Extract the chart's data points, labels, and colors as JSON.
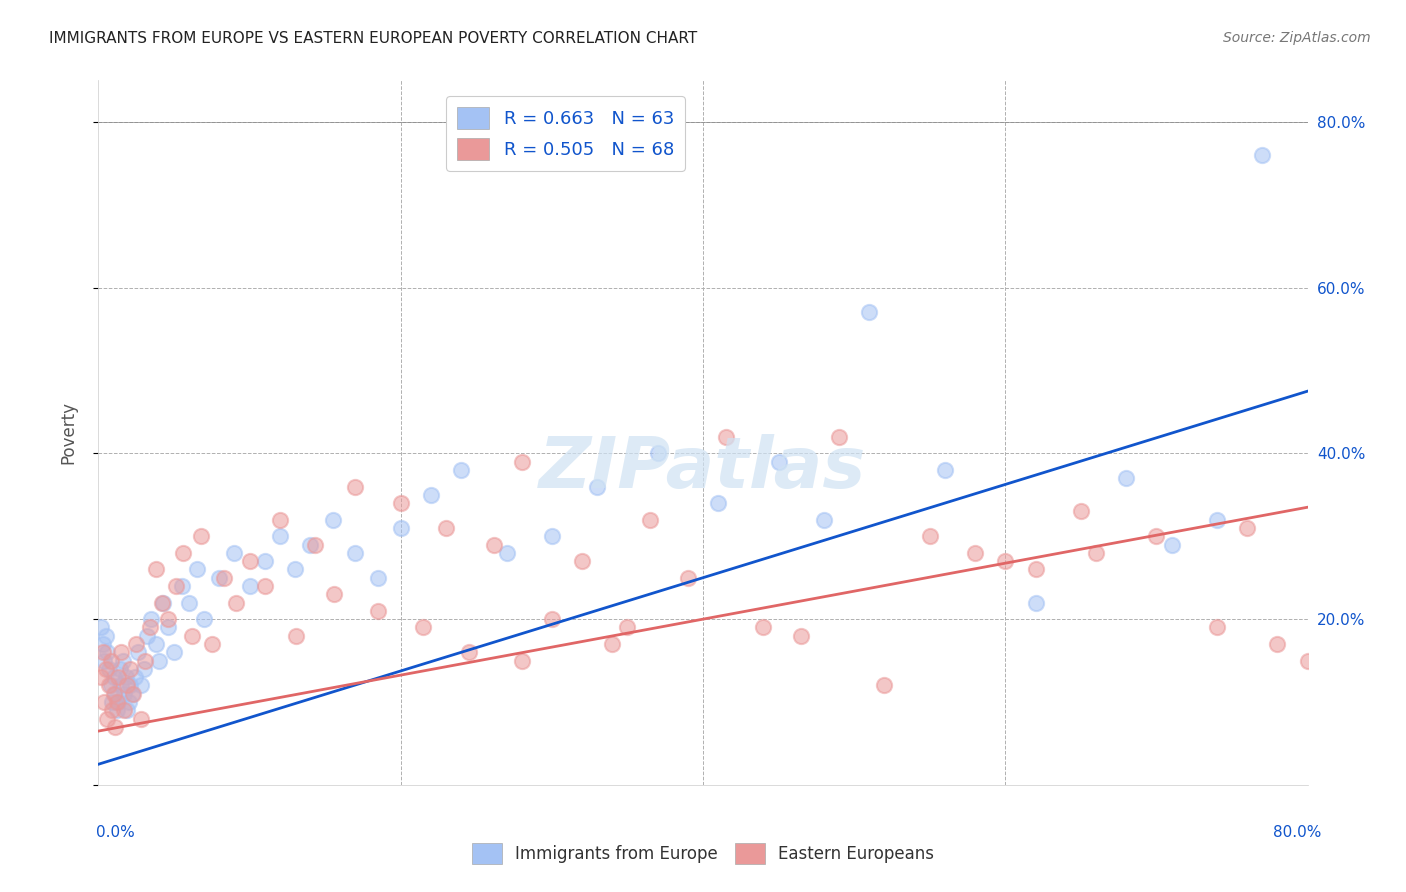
{
  "title": "IMMIGRANTS FROM EUROPE VS EASTERN EUROPEAN POVERTY CORRELATION CHART",
  "source": "Source: ZipAtlas.com",
  "ylabel": "Poverty",
  "xlim": [
    0,
    0.8
  ],
  "ylim": [
    0,
    0.85
  ],
  "blue_R": 0.663,
  "blue_N": 63,
  "pink_R": 0.505,
  "pink_N": 68,
  "blue_color": "#a4c2f4",
  "pink_color": "#ea9999",
  "blue_line_color": "#1155cc",
  "pink_line_color": "#e06666",
  "legend_R_color": "#1155cc",
  "background_color": "#ffffff",
  "grid_color": "#b0b0b0",
  "title_color": "#000000",
  "axis_label_color": "#1155cc",
  "blue_line_start_y": 0.025,
  "blue_line_end_y": 0.475,
  "pink_line_start_y": 0.065,
  "pink_line_end_y": 0.335,
  "blue_scatter_x": [
    0.002,
    0.003,
    0.004,
    0.005,
    0.006,
    0.007,
    0.008,
    0.009,
    0.01,
    0.011,
    0.012,
    0.013,
    0.014,
    0.015,
    0.016,
    0.017,
    0.018,
    0.019,
    0.02,
    0.021,
    0.022,
    0.024,
    0.026,
    0.028,
    0.03,
    0.032,
    0.035,
    0.038,
    0.04,
    0.043,
    0.046,
    0.05,
    0.055,
    0.06,
    0.065,
    0.07,
    0.08,
    0.09,
    0.1,
    0.11,
    0.12,
    0.13,
    0.14,
    0.155,
    0.17,
    0.185,
    0.2,
    0.22,
    0.24,
    0.27,
    0.3,
    0.33,
    0.37,
    0.41,
    0.45,
    0.48,
    0.51,
    0.56,
    0.62,
    0.68,
    0.71,
    0.74,
    0.77
  ],
  "blue_scatter_y": [
    0.19,
    0.17,
    0.15,
    0.18,
    0.16,
    0.14,
    0.12,
    0.1,
    0.13,
    0.11,
    0.09,
    0.1,
    0.14,
    0.12,
    0.15,
    0.11,
    0.13,
    0.09,
    0.1,
    0.12,
    0.11,
    0.13,
    0.16,
    0.12,
    0.14,
    0.18,
    0.2,
    0.17,
    0.15,
    0.22,
    0.19,
    0.16,
    0.24,
    0.22,
    0.26,
    0.2,
    0.25,
    0.28,
    0.24,
    0.27,
    0.3,
    0.26,
    0.29,
    0.32,
    0.28,
    0.25,
    0.31,
    0.35,
    0.38,
    0.28,
    0.3,
    0.36,
    0.4,
    0.34,
    0.39,
    0.32,
    0.57,
    0.38,
    0.22,
    0.37,
    0.29,
    0.32,
    0.76
  ],
  "pink_scatter_x": [
    0.002,
    0.003,
    0.004,
    0.005,
    0.006,
    0.007,
    0.008,
    0.009,
    0.01,
    0.011,
    0.012,
    0.013,
    0.015,
    0.017,
    0.019,
    0.021,
    0.023,
    0.025,
    0.028,
    0.031,
    0.034,
    0.038,
    0.042,
    0.046,
    0.051,
    0.056,
    0.062,
    0.068,
    0.075,
    0.083,
    0.091,
    0.1,
    0.11,
    0.12,
    0.131,
    0.143,
    0.156,
    0.17,
    0.185,
    0.2,
    0.215,
    0.23,
    0.245,
    0.262,
    0.28,
    0.3,
    0.32,
    0.34,
    0.365,
    0.39,
    0.415,
    0.44,
    0.465,
    0.49,
    0.52,
    0.55,
    0.58,
    0.62,
    0.66,
    0.7,
    0.74,
    0.76,
    0.78,
    0.8,
    0.6,
    0.65,
    0.35,
    0.28
  ],
  "pink_scatter_y": [
    0.13,
    0.16,
    0.1,
    0.14,
    0.08,
    0.12,
    0.15,
    0.09,
    0.11,
    0.07,
    0.1,
    0.13,
    0.16,
    0.09,
    0.12,
    0.14,
    0.11,
    0.17,
    0.08,
    0.15,
    0.19,
    0.26,
    0.22,
    0.2,
    0.24,
    0.28,
    0.18,
    0.3,
    0.17,
    0.25,
    0.22,
    0.27,
    0.24,
    0.32,
    0.18,
    0.29,
    0.23,
    0.36,
    0.21,
    0.34,
    0.19,
    0.31,
    0.16,
    0.29,
    0.39,
    0.2,
    0.27,
    0.17,
    0.32,
    0.25,
    0.42,
    0.19,
    0.18,
    0.42,
    0.12,
    0.3,
    0.28,
    0.26,
    0.28,
    0.3,
    0.19,
    0.31,
    0.17,
    0.15,
    0.27,
    0.33,
    0.19,
    0.15
  ]
}
